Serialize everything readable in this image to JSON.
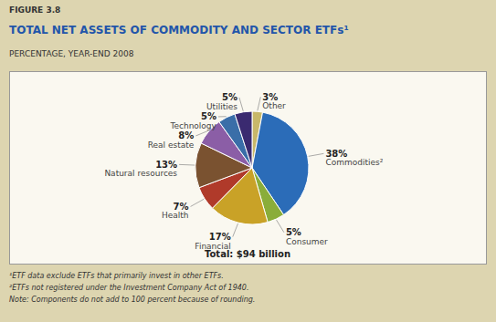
{
  "chart_data": {
    "type": "pie",
    "title": "TOTAL NET ASSETS OF COMMODITY AND SECTOR ETFs¹",
    "subtitle": "PERCENTAGE, YEAR-END 2008",
    "figure_label": "FIGURE 3.8",
    "total_label": "Total: $94 billion",
    "footnotes": [
      "¹ETF data exclude ETFs that primarily invest in other ETFs.",
      "²ETFs not registered under the Investment Company Act of 1940.",
      "Note: Components do not add to 100 percent because of rounding."
    ],
    "categories": [
      "Other",
      "Commodities²",
      "Consumer",
      "Financial",
      "Health",
      "Natural resources",
      "Real estate",
      "Technology",
      "Utilities"
    ],
    "values": [
      3,
      38,
      5,
      17,
      7,
      13,
      8,
      5,
      5
    ],
    "value_labels": [
      "3%",
      "38%",
      "5%",
      "17%",
      "7%",
      "13%",
      "8%",
      "5%",
      "5%"
    ],
    "colors": [
      "#c8b86a",
      "#2b6cb8",
      "#8aad3a",
      "#c9a227",
      "#b03a2a",
      "#7a5230",
      "#8b5ea6",
      "#3a6ea8",
      "#3a2a70"
    ],
    "data_labels": true
  }
}
